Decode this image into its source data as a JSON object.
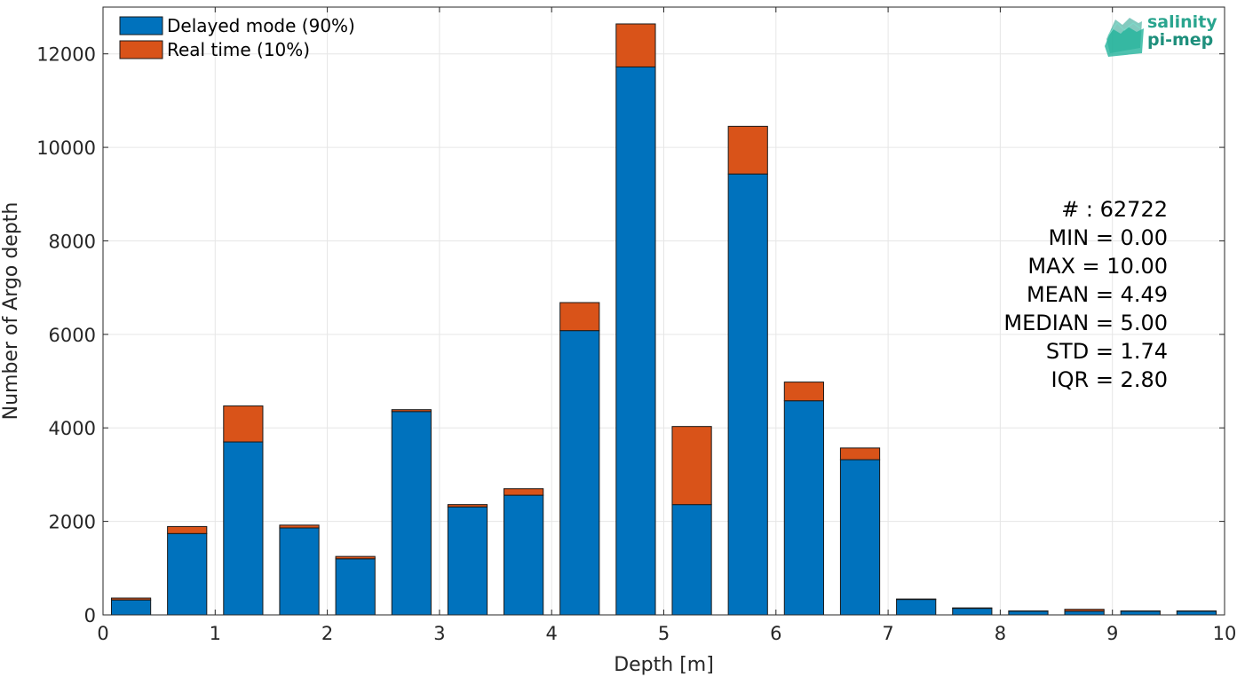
{
  "chart_data": {
    "type": "bar",
    "stacked": true,
    "xlabel": "Depth [m]",
    "ylabel": "Number of Argo depth",
    "xlim": [
      0,
      10
    ],
    "ylim": [
      0,
      13000
    ],
    "xticks": [
      0,
      1,
      2,
      3,
      4,
      5,
      6,
      7,
      8,
      9,
      10
    ],
    "yticks": [
      0,
      2000,
      4000,
      6000,
      8000,
      10000,
      12000
    ],
    "grid": true,
    "legend_position": "top-left",
    "bin_width": 0.5,
    "bin_centers": [
      0.25,
      0.75,
      1.25,
      1.75,
      2.25,
      2.75,
      3.25,
      3.75,
      4.25,
      4.75,
      5.25,
      5.75,
      6.25,
      6.75,
      7.25,
      7.75,
      8.25,
      8.75,
      9.25,
      9.75
    ],
    "series": [
      {
        "name": "Delayed mode (90%)",
        "color": "#0072bd",
        "values": [
          320,
          1740,
          3700,
          1860,
          1200,
          4350,
          2310,
          2560,
          6080,
          11720,
          2360,
          9430,
          4580,
          3320,
          330,
          140,
          80,
          80,
          80,
          80
        ]
      },
      {
        "name": "Real time (10%)",
        "color": "#d95319",
        "values": [
          40,
          150,
          770,
          60,
          50,
          40,
          50,
          140,
          600,
          920,
          1670,
          1020,
          400,
          250,
          10,
          10,
          5,
          40,
          5,
          5
        ]
      }
    ],
    "annotation": [
      "# : 62722",
      "MIN = 0.00",
      "MAX =  10.00",
      "MEAN = 4.49",
      "MEDIAN = 5.00",
      "STD = 1.74",
      "IQR = 2.80"
    ]
  },
  "logo": {
    "line1": "salinity",
    "line2": "pi-mep",
    "color": "#2aa58f"
  }
}
